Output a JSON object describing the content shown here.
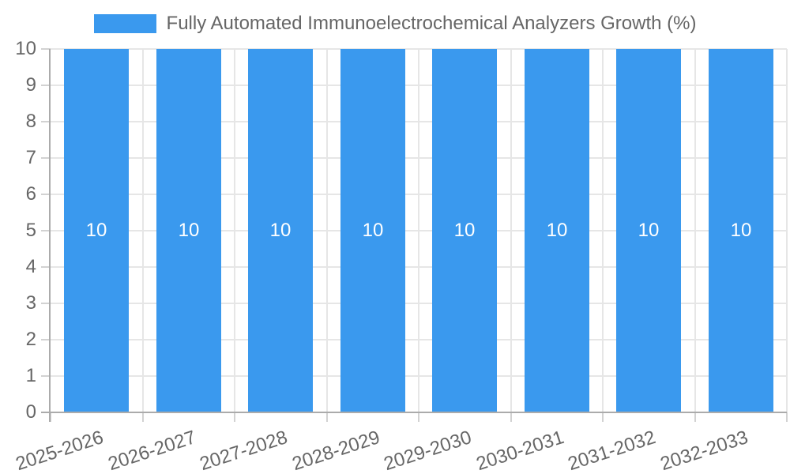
{
  "chart_data": {
    "type": "bar",
    "categories": [
      "2025-2026",
      "2026-2027",
      "2027-2028",
      "2028-2029",
      "2029-2030",
      "2030-2031",
      "2031-2032",
      "2032-2033"
    ],
    "series": [
      {
        "name": "Fully Automated Immunoelectrochemical Analyzers Growth (%)",
        "values": [
          10,
          10,
          10,
          10,
          10,
          10,
          10,
          10
        ],
        "color": "#3a99ee"
      }
    ],
    "value_labels": [
      "10",
      "10",
      "10",
      "10",
      "10",
      "10",
      "10",
      "10"
    ],
    "title": "",
    "xlabel": "",
    "ylabel": "",
    "ylim": [
      0,
      10
    ],
    "yticks": [
      "0",
      "1",
      "2",
      "3",
      "4",
      "5",
      "6",
      "7",
      "8",
      "9",
      "10"
    ],
    "grid": true,
    "legend_position": "top",
    "x_label_rotation_deg": -18,
    "styles": {
      "bar_color": "#3a99ee",
      "value_label_color": "#ffffff",
      "axis_line_color": "#ababab",
      "grid_line_color": "#e6e6e6",
      "tick_mark_color": "#d2d2d2",
      "tick_label_color": "#666666",
      "legend_text_color": "#666666",
      "background_color": "#ffffff"
    }
  }
}
